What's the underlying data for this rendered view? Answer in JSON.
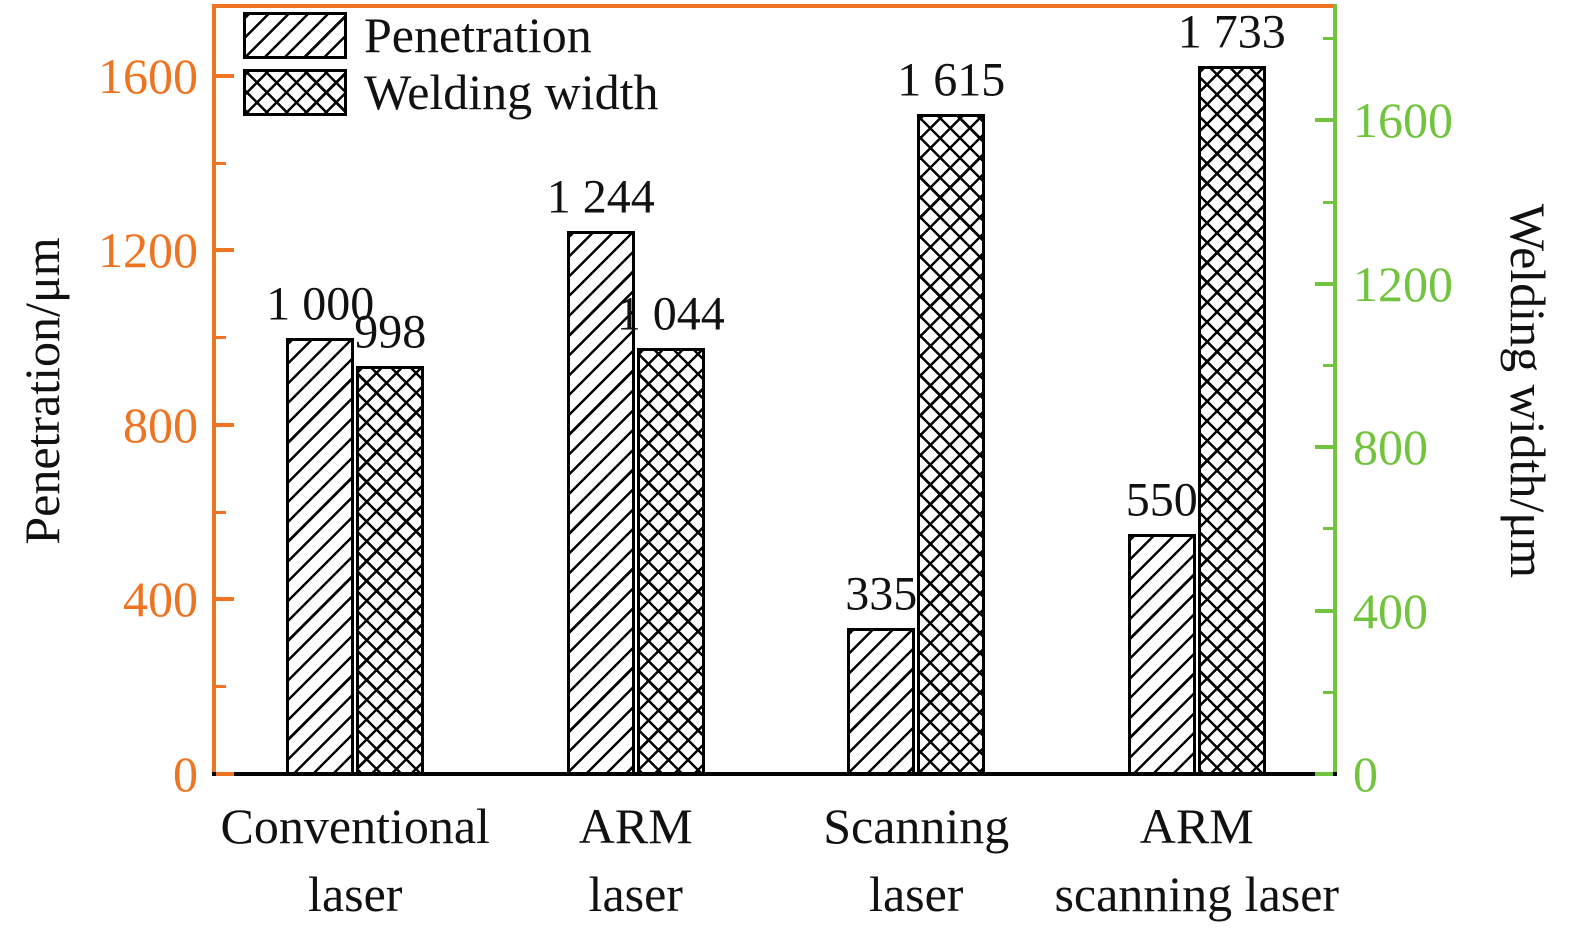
{
  "chart_data": {
    "type": "bar",
    "categories": [
      {
        "lines": [
          "Conventional",
          "laser"
        ]
      },
      {
        "lines": [
          "ARM",
          "laser"
        ]
      },
      {
        "lines": [
          "Scanning",
          "laser"
        ]
      },
      {
        "lines": [
          "ARM",
          "scanning laser"
        ]
      }
    ],
    "series": [
      {
        "name": "Penetration",
        "axis": "left",
        "hatch": "diagonal",
        "values": [
          1000,
          1244,
          335,
          550
        ],
        "labels": [
          "1 000",
          "1 244",
          "335",
          "550"
        ]
      },
      {
        "name": "Welding width",
        "axis": "right",
        "hatch": "cross",
        "values": [
          998,
          1044,
          1615,
          1733
        ],
        "labels": [
          "998",
          "1 044",
          "1 615",
          "1 733"
        ]
      }
    ],
    "left_axis": {
      "label": "Penetration/μm",
      "color": "#EE7422",
      "ticks": [
        0,
        400,
        800,
        1200,
        1600
      ],
      "minor_step": 200,
      "max": 1760
    },
    "right_axis": {
      "label": "Welding width/μm",
      "color": "#72C43E",
      "ticks": [
        0,
        400,
        800,
        1200,
        1600
      ],
      "minor_step": 200,
      "max": 1880
    },
    "bottom_axis_color": "#000000",
    "grid": false,
    "legend_position": "top-left"
  }
}
